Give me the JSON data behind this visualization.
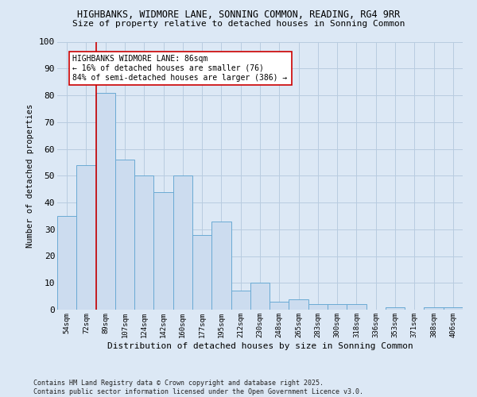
{
  "title1": "HIGHBANKS, WIDMORE LANE, SONNING COMMON, READING, RG4 9RR",
  "title2": "Size of property relative to detached houses in Sonning Common",
  "xlabel": "Distribution of detached houses by size in Sonning Common",
  "ylabel": "Number of detached properties",
  "categories": [
    "54sqm",
    "72sqm",
    "89sqm",
    "107sqm",
    "124sqm",
    "142sqm",
    "160sqm",
    "177sqm",
    "195sqm",
    "212sqm",
    "230sqm",
    "248sqm",
    "265sqm",
    "283sqm",
    "300sqm",
    "318sqm",
    "336sqm",
    "353sqm",
    "371sqm",
    "388sqm",
    "406sqm"
  ],
  "values": [
    35,
    54,
    81,
    56,
    50,
    44,
    50,
    28,
    33,
    7,
    10,
    3,
    4,
    2,
    2,
    2,
    0,
    1,
    0,
    1,
    1
  ],
  "bar_color": "#ccdcef",
  "bar_edge_color": "#6aaad4",
  "vline_color": "#cc0000",
  "vline_x_index": 2,
  "annotation_text": "HIGHBANKS WIDMORE LANE: 86sqm\n← 16% of detached houses are smaller (76)\n84% of semi-detached houses are larger (386) →",
  "annotation_box_color": "#ffffff",
  "annotation_box_edge": "#cc0000",
  "grid_color": "#b8cce0",
  "bg_color": "#dce8f5",
  "ylim": [
    0,
    100
  ],
  "yticks": [
    0,
    10,
    20,
    30,
    40,
    50,
    60,
    70,
    80,
    90,
    100
  ],
  "footer": "Contains HM Land Registry data © Crown copyright and database right 2025.\nContains public sector information licensed under the Open Government Licence v3.0."
}
